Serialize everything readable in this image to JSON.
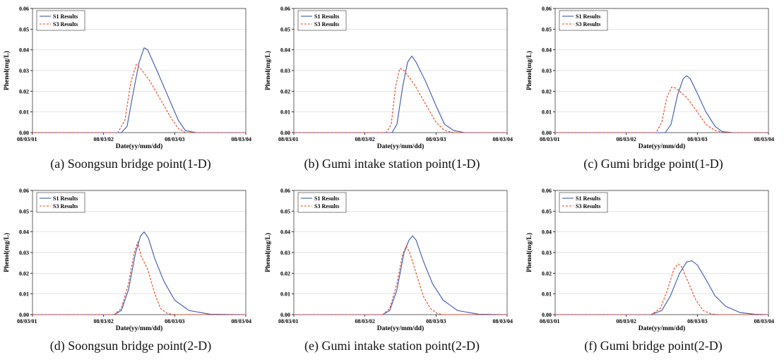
{
  "chart_data": [
    {
      "type": "line",
      "caption": "(a) Soongsun bridge point(1-D)",
      "xlabel": "Date(yy/mm/dd)",
      "ylabel": "Phenol(mg/L)",
      "x_ticks": [
        "08/03/01",
        "08/03/02",
        "08/03/03",
        "08/03/04"
      ],
      "xlim": [
        0,
        3
      ],
      "ylim": [
        0,
        0.06
      ],
      "y_ticks": [
        "0.00",
        "0.01",
        "0.02",
        "0.03",
        "0.04",
        "0.05",
        "0.06"
      ],
      "legend": "top-left",
      "series": [
        {
          "name": "S1 Results",
          "color": "#3a55b4",
          "style": "solid",
          "points": [
            [
              0,
              0
            ],
            [
              1.25,
              0
            ],
            [
              1.33,
              0.003
            ],
            [
              1.42,
              0.02
            ],
            [
              1.5,
              0.034
            ],
            [
              1.57,
              0.041
            ],
            [
              1.62,
              0.04
            ],
            [
              1.75,
              0.03
            ],
            [
              1.9,
              0.018
            ],
            [
              2.05,
              0.006
            ],
            [
              2.15,
              0.001
            ],
            [
              2.3,
              0
            ],
            [
              3,
              0
            ]
          ]
        },
        {
          "name": "S3 Results",
          "color": "#e8401c",
          "style": "dashed",
          "points": [
            [
              0,
              0
            ],
            [
              1.2,
              0
            ],
            [
              1.3,
              0.006
            ],
            [
              1.38,
              0.024
            ],
            [
              1.46,
              0.033
            ],
            [
              1.52,
              0.031
            ],
            [
              1.65,
              0.025
            ],
            [
              1.8,
              0.016
            ],
            [
              1.95,
              0.007
            ],
            [
              2.05,
              0.002
            ],
            [
              2.15,
              0
            ],
            [
              3,
              0
            ]
          ]
        }
      ]
    },
    {
      "type": "line",
      "caption": "(b) Gumi intake station point(1-D)",
      "xlabel": "Date(yy/mm/dd)",
      "ylabel": "Phenol(mg/L)",
      "x_ticks": [
        "08/03/01",
        "08/03/02",
        "08/03/03",
        "08/03/04"
      ],
      "xlim": [
        0,
        3
      ],
      "ylim": [
        0,
        0.06
      ],
      "y_ticks": [
        "0.00",
        "0.01",
        "0.02",
        "0.03",
        "0.04",
        "0.05",
        "0.06"
      ],
      "legend": "top-left",
      "series": [
        {
          "name": "S1 Results",
          "color": "#3a55b4",
          "style": "solid",
          "points": [
            [
              0,
              0
            ],
            [
              1.38,
              0
            ],
            [
              1.45,
              0.004
            ],
            [
              1.53,
              0.022
            ],
            [
              1.6,
              0.034
            ],
            [
              1.66,
              0.037
            ],
            [
              1.72,
              0.034
            ],
            [
              1.85,
              0.025
            ],
            [
              2.0,
              0.013
            ],
            [
              2.12,
              0.004
            ],
            [
              2.25,
              0.001
            ],
            [
              2.4,
              0
            ],
            [
              3,
              0
            ]
          ]
        },
        {
          "name": "S3 Results",
          "color": "#e8401c",
          "style": "dashed",
          "points": [
            [
              0,
              0
            ],
            [
              1.3,
              0
            ],
            [
              1.37,
              0.004
            ],
            [
              1.43,
              0.022
            ],
            [
              1.49,
              0.031
            ],
            [
              1.55,
              0.03
            ],
            [
              1.7,
              0.023
            ],
            [
              1.85,
              0.014
            ],
            [
              2.0,
              0.005
            ],
            [
              2.12,
              0.001
            ],
            [
              2.25,
              0
            ],
            [
              3,
              0
            ]
          ]
        }
      ]
    },
    {
      "type": "line",
      "caption": "(c) Gumi bridge point(1-D)",
      "xlabel": "Date(yy/mm/dd)",
      "ylabel": "Phenol(mg/L)",
      "x_ticks": [
        "08/03/01",
        "08/03/02",
        "08/03/03",
        "08/03/04"
      ],
      "xlim": [
        0,
        3
      ],
      "ylim": [
        0,
        0.06
      ],
      "y_ticks": [
        "0.00",
        "0.01",
        "0.02",
        "0.03",
        "0.04",
        "0.05",
        "0.06"
      ],
      "legend": "top-left",
      "series": [
        {
          "name": "S1 Results",
          "color": "#3a55b4",
          "style": "solid",
          "points": [
            [
              0,
              0
            ],
            [
              1.55,
              0
            ],
            [
              1.63,
              0.004
            ],
            [
              1.72,
              0.018
            ],
            [
              1.8,
              0.026
            ],
            [
              1.85,
              0.0275
            ],
            [
              1.9,
              0.026
            ],
            [
              2.0,
              0.019
            ],
            [
              2.12,
              0.01
            ],
            [
              2.25,
              0.003
            ],
            [
              2.35,
              0.0005
            ],
            [
              2.5,
              0
            ],
            [
              3,
              0
            ]
          ]
        },
        {
          "name": "S3 Results",
          "color": "#e8401c",
          "style": "dashed",
          "points": [
            [
              0,
              0
            ],
            [
              1.42,
              0
            ],
            [
              1.5,
              0.005
            ],
            [
              1.57,
              0.017
            ],
            [
              1.64,
              0.022
            ],
            [
              1.7,
              0.0215
            ],
            [
              1.85,
              0.017
            ],
            [
              2.0,
              0.01
            ],
            [
              2.12,
              0.004
            ],
            [
              2.25,
              0.001
            ],
            [
              2.4,
              0
            ],
            [
              3,
              0
            ]
          ]
        }
      ]
    },
    {
      "type": "line",
      "caption": "(d) Soongsun bridge point(2-D)",
      "xlabel": "Date(yy/mm/dd)",
      "ylabel": "Phenol(mg/L)",
      "x_ticks": [
        "08/03/01",
        "08/03/02",
        "08/03/03",
        "08/03/04"
      ],
      "xlim": [
        0,
        3
      ],
      "ylim": [
        0,
        0.06
      ],
      "y_ticks": [
        "0.00",
        "0.01",
        "0.02",
        "0.03",
        "0.04",
        "0.05",
        "0.06"
      ],
      "legend": "top-left",
      "series": [
        {
          "name": "S1 Results",
          "color": "#3a55b4",
          "style": "solid",
          "points": [
            [
              0,
              0
            ],
            [
              1.15,
              0
            ],
            [
              1.25,
              0.002
            ],
            [
              1.35,
              0.012
            ],
            [
              1.45,
              0.03
            ],
            [
              1.52,
              0.038
            ],
            [
              1.57,
              0.04
            ],
            [
              1.63,
              0.037
            ],
            [
              1.72,
              0.027
            ],
            [
              1.85,
              0.016
            ],
            [
              2.0,
              0.007
            ],
            [
              2.2,
              0.002
            ],
            [
              2.5,
              0.0002
            ],
            [
              3,
              0
            ]
          ]
        },
        {
          "name": "S3 Results",
          "color": "#e8401c",
          "style": "dashed",
          "points": [
            [
              0,
              0
            ],
            [
              1.15,
              0
            ],
            [
              1.25,
              0.003
            ],
            [
              1.35,
              0.015
            ],
            [
              1.43,
              0.03
            ],
            [
              1.48,
              0.035
            ],
            [
              1.53,
              0.028
            ],
            [
              1.62,
              0.022
            ],
            [
              1.72,
              0.01
            ],
            [
              1.8,
              0.003
            ],
            [
              1.9,
              0.0005
            ],
            [
              2.0,
              0
            ],
            [
              3,
              0
            ]
          ]
        }
      ]
    },
    {
      "type": "line",
      "caption": "(e) Gumi intake station point(2-D)",
      "xlabel": "Date(yy/mm/dd)",
      "ylabel": "Phenol(mg/L)",
      "x_ticks": [
        "08/03/01",
        "08/03/02",
        "08/03/03",
        "08/03/04"
      ],
      "xlim": [
        0,
        3
      ],
      "ylim": [
        0,
        0.06
      ],
      "y_ticks": [
        "0.00",
        "0.01",
        "0.02",
        "0.03",
        "0.04",
        "0.05",
        "0.06"
      ],
      "legend": "top-left",
      "series": [
        {
          "name": "S1 Results",
          "color": "#3a55b4",
          "style": "solid",
          "points": [
            [
              0,
              0
            ],
            [
              1.25,
              0
            ],
            [
              1.35,
              0.002
            ],
            [
              1.45,
              0.012
            ],
            [
              1.55,
              0.03
            ],
            [
              1.62,
              0.036
            ],
            [
              1.67,
              0.038
            ],
            [
              1.72,
              0.036
            ],
            [
              1.82,
              0.026
            ],
            [
              1.95,
              0.015
            ],
            [
              2.1,
              0.007
            ],
            [
              2.3,
              0.002
            ],
            [
              2.6,
              0.0002
            ],
            [
              3,
              0
            ]
          ]
        },
        {
          "name": "S3 Results",
          "color": "#e8401c",
          "style": "dashed",
          "points": [
            [
              0,
              0
            ],
            [
              1.25,
              0
            ],
            [
              1.35,
              0.003
            ],
            [
              1.45,
              0.015
            ],
            [
              1.53,
              0.029
            ],
            [
              1.58,
              0.033
            ],
            [
              1.63,
              0.03
            ],
            [
              1.72,
              0.02
            ],
            [
              1.82,
              0.009
            ],
            [
              1.92,
              0.003
            ],
            [
              2.02,
              0.0005
            ],
            [
              2.1,
              0
            ],
            [
              3,
              0
            ]
          ]
        }
      ]
    },
    {
      "type": "line",
      "caption": "(f) Gumi bridge point(2-D)",
      "xlabel": "Date(yy/mm/dd)",
      "ylabel": "Phenol(mg/L)",
      "x_ticks": [
        "08/03/01",
        "08/03/02",
        "08/03/03",
        "08/03/04"
      ],
      "xlim": [
        0,
        3
      ],
      "ylim": [
        0,
        0.06
      ],
      "y_ticks": [
        "0.00",
        "0.01",
        "0.02",
        "0.03",
        "0.04",
        "0.05",
        "0.06"
      ],
      "legend": "top-left",
      "series": [
        {
          "name": "S1 Results",
          "color": "#3a55b4",
          "style": "solid",
          "points": [
            [
              0,
              0
            ],
            [
              1.35,
              0
            ],
            [
              1.5,
              0.002
            ],
            [
              1.62,
              0.009
            ],
            [
              1.75,
              0.02
            ],
            [
              1.85,
              0.0255
            ],
            [
              1.92,
              0.026
            ],
            [
              2.0,
              0.024
            ],
            [
              2.12,
              0.017
            ],
            [
              2.25,
              0.009
            ],
            [
              2.4,
              0.004
            ],
            [
              2.6,
              0.001
            ],
            [
              2.8,
              0.0002
            ],
            [
              3,
              0
            ]
          ]
        },
        {
          "name": "S3 Results",
          "color": "#e8401c",
          "style": "dashed",
          "points": [
            [
              0,
              0
            ],
            [
              1.35,
              0
            ],
            [
              1.48,
              0.003
            ],
            [
              1.58,
              0.012
            ],
            [
              1.67,
              0.022
            ],
            [
              1.73,
              0.0245
            ],
            [
              1.78,
              0.023
            ],
            [
              1.88,
              0.015
            ],
            [
              1.98,
              0.007
            ],
            [
              2.08,
              0.002
            ],
            [
              2.2,
              0.0003
            ],
            [
              2.3,
              0
            ],
            [
              3,
              0
            ]
          ]
        }
      ]
    }
  ]
}
